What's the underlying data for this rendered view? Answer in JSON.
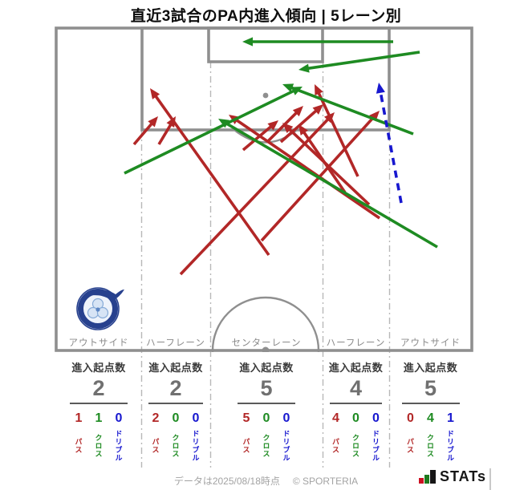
{
  "title": "直近3試合のPA内進入傾向 | 5レーン別",
  "stats": {
    "metric_label": "進入起点数"
  },
  "legend": {
    "pass_label": "パス",
    "cross_label": "クロス",
    "dribble_label": "ドリブル"
  },
  "lanes": [
    {
      "label": "アウトサイド",
      "value": 2,
      "pass": 1,
      "cross": 1,
      "dribble": 0
    },
    {
      "label": "ハーフレーン",
      "value": 2,
      "pass": 2,
      "cross": 0,
      "dribble": 0
    },
    {
      "label": "センターレーン",
      "value": 5,
      "pass": 5,
      "cross": 0,
      "dribble": 0
    },
    {
      "label": "ハーフレーン",
      "value": 4,
      "pass": 4,
      "cross": 0,
      "dribble": 0
    },
    {
      "label": "アウトサイド",
      "value": 5,
      "pass": 0,
      "cross": 4,
      "dribble": 1
    }
  ],
  "footer": {
    "note": "データは2025/08/18時点",
    "copyright": "© SPORTERIA",
    "brand": "STATs"
  },
  "colors": {
    "pass": "#b22727",
    "cross": "#1e8b22",
    "dribble": "#1717cf",
    "pitch_line": "#8f8f8f",
    "lane_divider": "#b8b8b8",
    "lane_label": "#8a8a8a",
    "value_text": "#707070",
    "header_text": "#3a3a3a",
    "footer_text": "#a3a3a3"
  },
  "chart_data": {
    "type": "pitch_arrows",
    "title": "直近3試合のPA内進入傾向 | 5レーン別",
    "coord_space": "screenshot_pixels_663x611",
    "lane_categories": [
      "アウトサイド",
      "ハーフレーン",
      "センターレーン",
      "ハーフレーン",
      "アウトサイド"
    ],
    "entry_counts": [
      2,
      2,
      5,
      4,
      5
    ],
    "series": [
      {
        "name": "パス",
        "color": "#b22727",
        "values": [
          1,
          2,
          5,
          4,
          0
        ]
      },
      {
        "name": "クロス",
        "color": "#1e8b22",
        "values": [
          1,
          0,
          0,
          0,
          4
        ]
      },
      {
        "name": "ドリブル",
        "color": "#1717cf",
        "values": [
          0,
          0,
          0,
          0,
          1
        ]
      }
    ],
    "arrows": [
      {
        "type": "pass",
        "from": [
          167,
          180
        ],
        "to": [
          197,
          145
        ]
      },
      {
        "type": "pass",
        "from": [
          198,
          180
        ],
        "to": [
          219,
          145
        ]
      },
      {
        "type": "pass",
        "from": [
          225,
          342
        ],
        "to": [
          417,
          140
        ]
      },
      {
        "type": "pass",
        "from": [
          335,
          318
        ],
        "to": [
          187,
          110
        ]
      },
      {
        "type": "pass",
        "from": [
          326,
          300
        ],
        "to": [
          473,
          138
        ]
      },
      {
        "type": "pass",
        "from": [
          303,
          187
        ],
        "to": [
          347,
          150
        ]
      },
      {
        "type": "pass",
        "from": [
          333,
          177
        ],
        "to": [
          378,
          132
        ]
      },
      {
        "type": "pass",
        "from": [
          350,
          177
        ],
        "to": [
          403,
          130
        ]
      },
      {
        "type": "pass",
        "from": [
          473,
          272
        ],
        "to": [
          285,
          143
        ]
      },
      {
        "type": "pass",
        "from": [
          460,
          255
        ],
        "to": [
          352,
          153
        ]
      },
      {
        "type": "pass",
        "from": [
          446,
          220
        ],
        "to": [
          392,
          105
        ]
      },
      {
        "type": "pass",
        "from": [
          430,
          240
        ],
        "to": [
          372,
          155
        ]
      },
      {
        "type": "cross",
        "from": [
          490,
          52
        ],
        "to": [
          302,
          52
        ]
      },
      {
        "type": "cross",
        "from": [
          523,
          65
        ],
        "to": [
          372,
          87
        ]
      },
      {
        "type": "cross",
        "from": [
          155,
          216
        ],
        "to": [
          377,
          108
        ]
      },
      {
        "type": "cross",
        "from": [
          545,
          308
        ],
        "to": [
          272,
          148
        ]
      },
      {
        "type": "cross",
        "from": [
          515,
          167
        ],
        "to": [
          352,
          105
        ]
      },
      {
        "type": "dribble",
        "from": [
          500,
          253
        ],
        "to": [
          472,
          103
        ]
      }
    ]
  }
}
